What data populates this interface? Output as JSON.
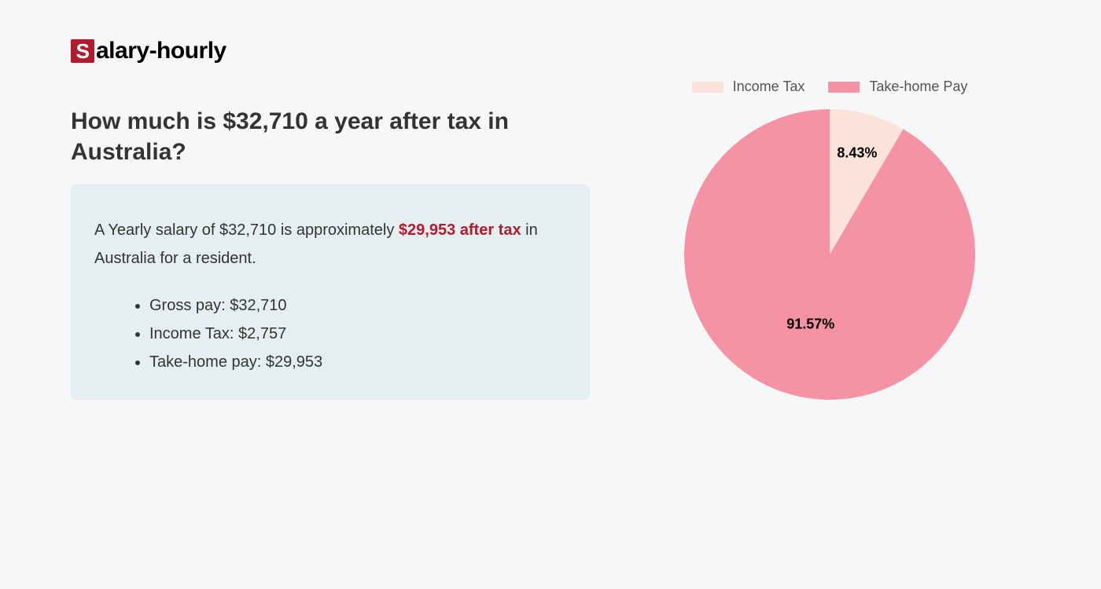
{
  "logo": {
    "s_char": "S",
    "rest": "alary-hourly",
    "s_box_bg": "#b01c2e",
    "s_box_fg": "#ffffff"
  },
  "title": "How much is $32,710 a year after tax in Australia?",
  "summary": {
    "text_before": "A Yearly salary of $32,710 is approximately ",
    "highlight": "$29,953 after tax",
    "text_after": " in Australia for a resident.",
    "highlight_color": "#b01c2e",
    "box_bg": "#e5eff0",
    "items": [
      "Gross pay: $32,710",
      "Income Tax: $2,757",
      "Take-home pay: $29,953"
    ]
  },
  "chart": {
    "type": "pie",
    "background_color": "#f5f7f8",
    "radius": 185,
    "legend": [
      {
        "label": "Income Tax",
        "color": "#fbe3da"
      },
      {
        "label": "Take-home Pay",
        "color": "#f593a4"
      }
    ],
    "slices": [
      {
        "name": "income-tax",
        "value": 8.43,
        "label": "8.43%",
        "color": "#fbe3da",
        "label_fontsize": 18,
        "label_fontweight": 700
      },
      {
        "name": "take-home",
        "value": 91.57,
        "label": "91.57%",
        "color": "#f593a4",
        "label_fontsize": 18,
        "label_fontweight": 700
      }
    ],
    "start_angle_deg": -90,
    "label_radius_frac": {
      "income-tax": 0.72,
      "take-home": 0.5
    }
  },
  "page": {
    "background_color": "#f5f7f8",
    "title_color": "#333333",
    "title_fontsize": 30,
    "body_fontsize": 20
  }
}
